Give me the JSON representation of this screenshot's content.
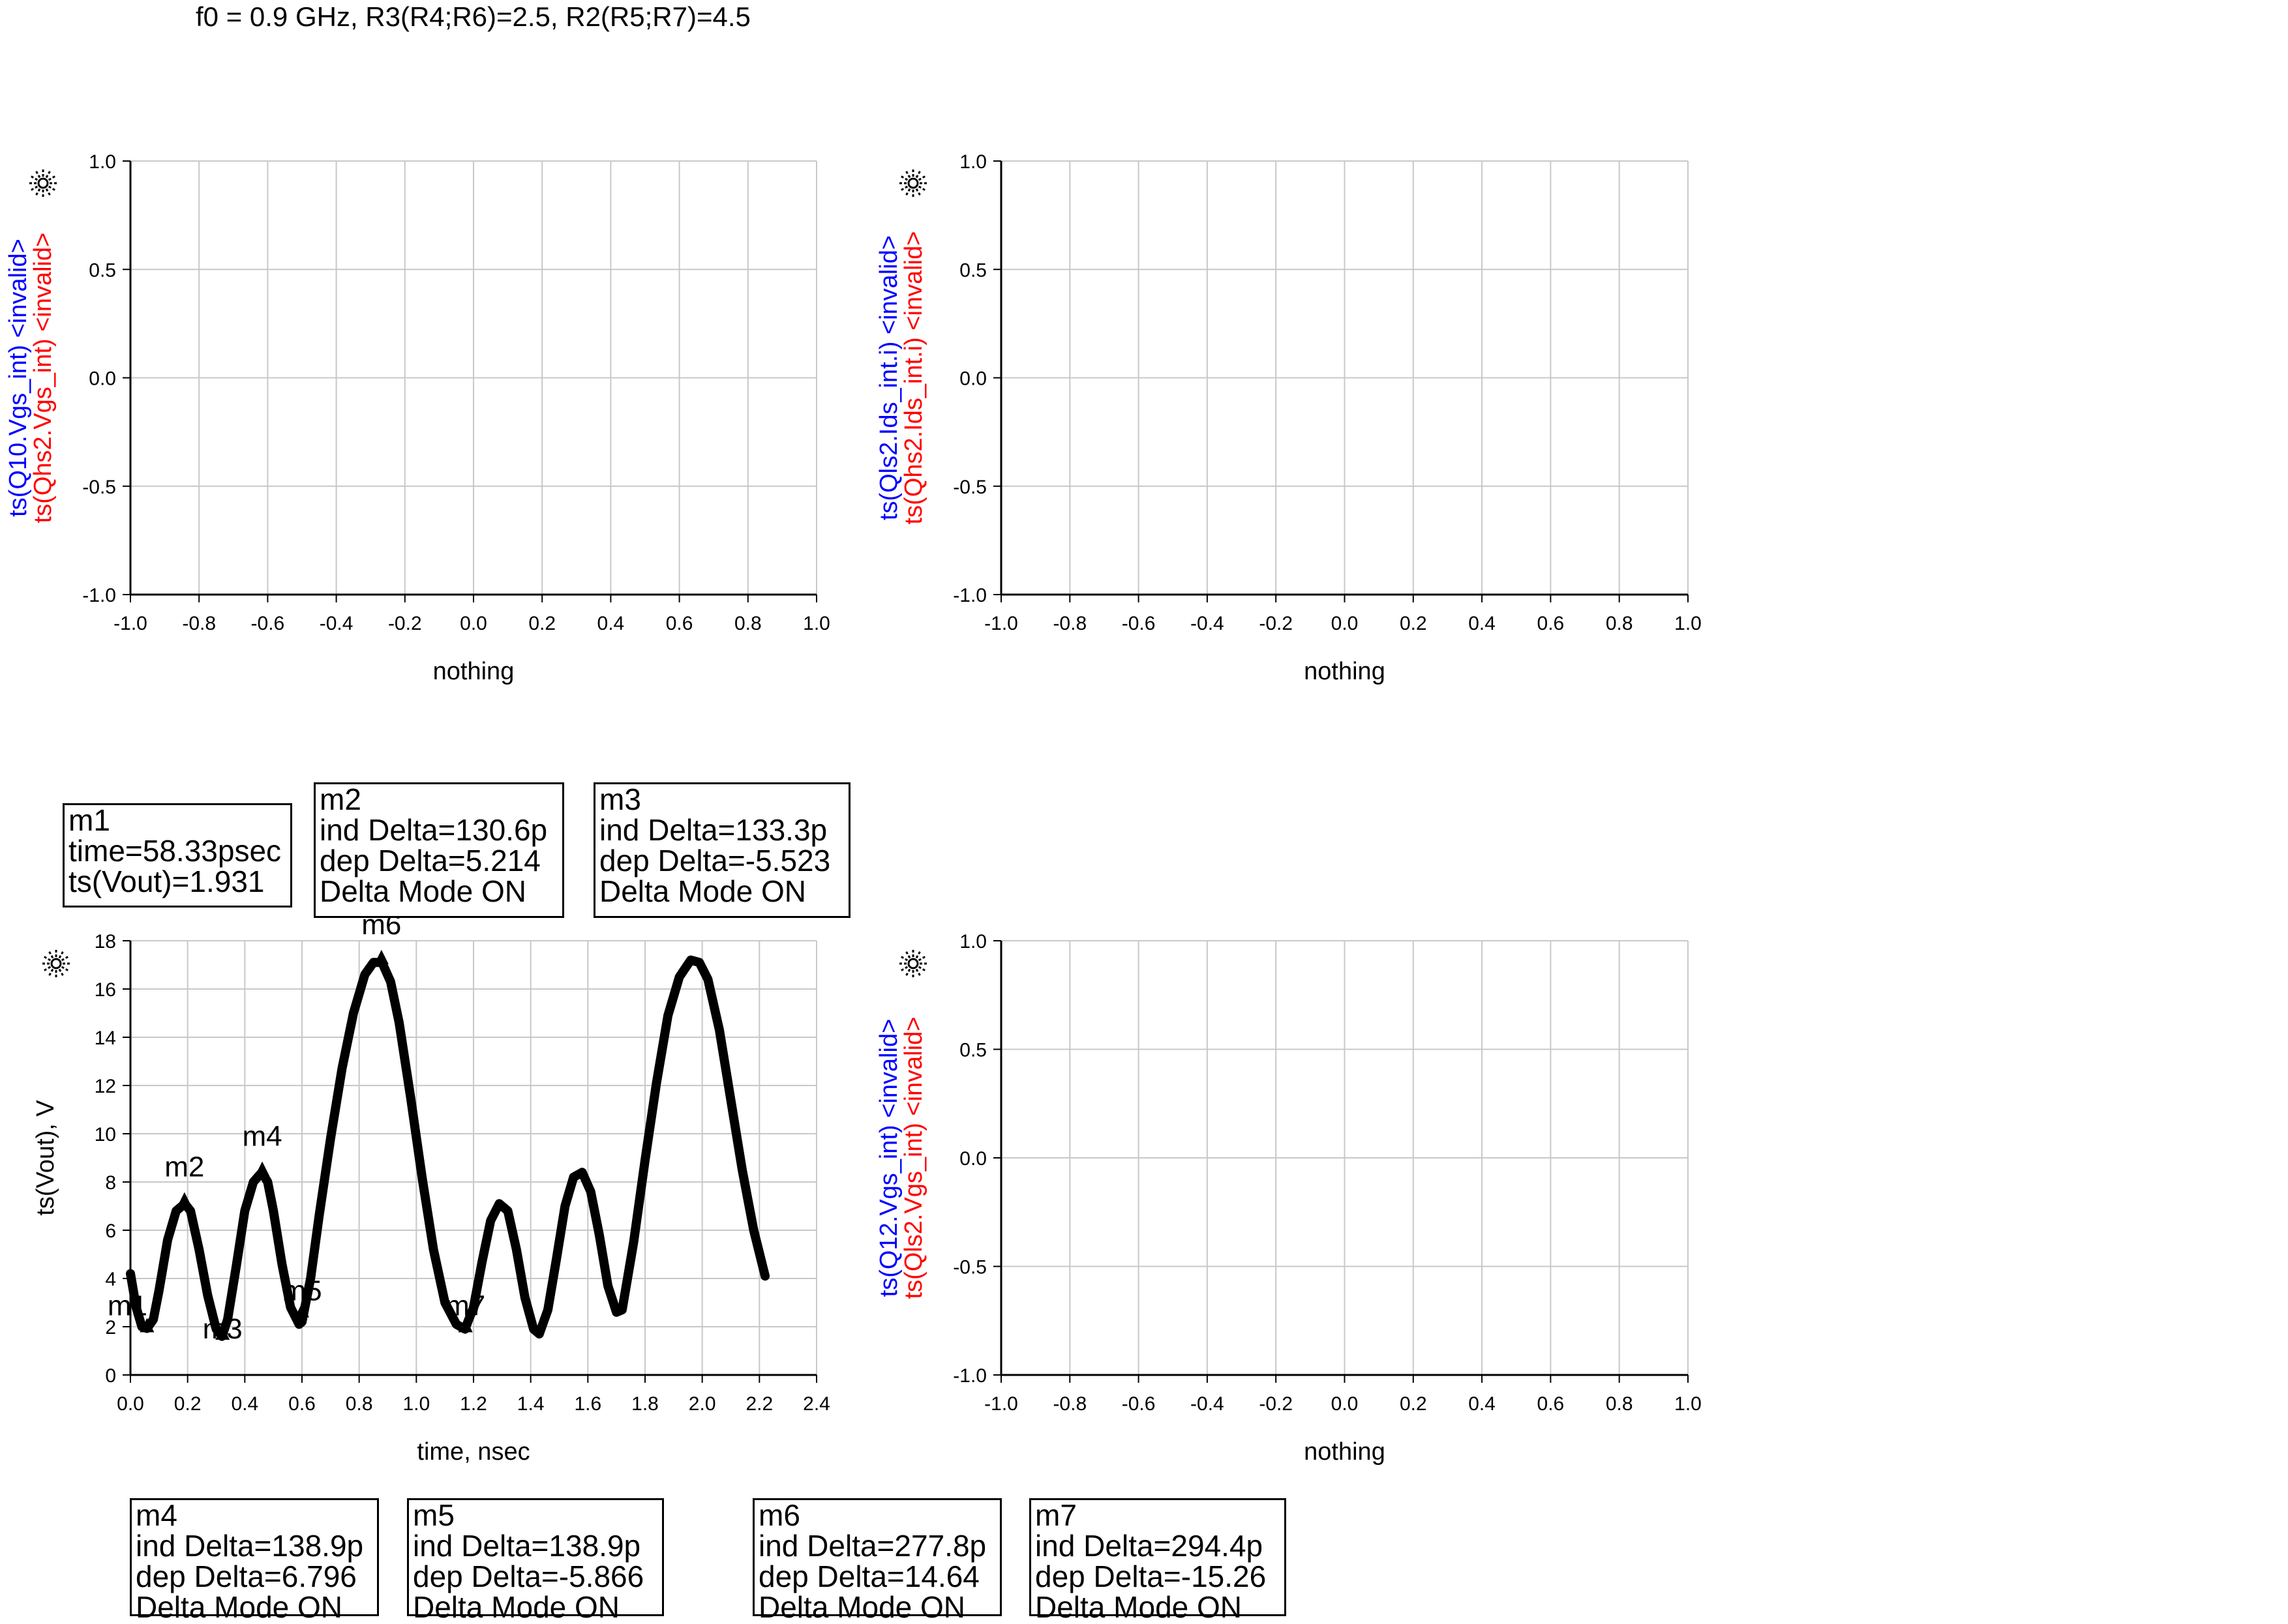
{
  "page_title": "f0 = 0.9 GHz, R3(R4;R6)=2.5, R2(R5;R7)=4.5",
  "chart_data": [
    {
      "type": "line",
      "ylabel_series": [
        {
          "text": "ts(Q10.Vgs_int)",
          "suffix": "<invalid>",
          "color": "#0000ff"
        },
        {
          "text": "ts(Qhs2.Vgs_int)",
          "suffix": "<invalid>",
          "color": "#ff0000"
        }
      ],
      "xlabel": "nothing",
      "xlim": [
        -1.0,
        1.0
      ],
      "ylim": [
        -1.0,
        1.0
      ],
      "xticks": [
        "-1.0",
        "-0.8",
        "-0.6",
        "-0.4",
        "-0.2",
        "0.0",
        "0.2",
        "0.4",
        "0.6",
        "0.8",
        "1.0"
      ],
      "yticks": [
        "1.0",
        "0.5",
        "0.0",
        "-0.5",
        "-1.0"
      ],
      "grid": true,
      "series": []
    },
    {
      "type": "line",
      "ylabel_series": [
        {
          "text": "ts(Qls2.Ids_int.i)",
          "suffix": "<invalid>",
          "color": "#0000ff"
        },
        {
          "text": "ts(Qhs2.Ids_int.i)",
          "suffix": "<invalid>",
          "color": "#ff0000"
        }
      ],
      "xlabel": "nothing",
      "xlim": [
        -1.0,
        1.0
      ],
      "ylim": [
        -1.0,
        1.0
      ],
      "xticks": [
        "-1.0",
        "-0.8",
        "-0.6",
        "-0.4",
        "-0.2",
        "0.0",
        "0.2",
        "0.4",
        "0.6",
        "0.8",
        "1.0"
      ],
      "yticks": [
        "1.0",
        "0.5",
        "0.0",
        "-0.5",
        "-1.0"
      ],
      "grid": true,
      "series": []
    },
    {
      "type": "line",
      "ylabel": "ts(Vout), V",
      "xlabel": "time, nsec",
      "xlim": [
        0.0,
        2.4
      ],
      "ylim": [
        0,
        18
      ],
      "xticks": [
        "0.0",
        "0.2",
        "0.4",
        "0.6",
        "0.8",
        "1.0",
        "1.2",
        "1.4",
        "1.6",
        "1.8",
        "2.0",
        "2.2",
        "2.4"
      ],
      "yticks": [
        "18",
        "16",
        "14",
        "12",
        "10",
        "8",
        "6",
        "4",
        "2",
        "0"
      ],
      "grid": true,
      "series": [
        {
          "color": "#000000",
          "x": [
            0.0,
            0.02,
            0.04,
            0.058,
            0.08,
            0.1,
            0.13,
            0.16,
            0.19,
            0.21,
            0.24,
            0.27,
            0.3,
            0.32,
            0.34,
            0.37,
            0.4,
            0.43,
            0.46,
            0.48,
            0.5,
            0.53,
            0.56,
            0.59,
            0.6,
            0.63,
            0.66,
            0.7,
            0.74,
            0.78,
            0.82,
            0.85,
            0.88,
            0.91,
            0.94,
            0.98,
            1.02,
            1.06,
            1.1,
            1.14,
            1.17,
            1.2,
            1.23,
            1.26,
            1.29,
            1.32,
            1.35,
            1.38,
            1.41,
            1.43,
            1.46,
            1.49,
            1.52,
            1.55,
            1.58,
            1.61,
            1.64,
            1.67,
            1.7,
            1.72,
            1.76,
            1.8,
            1.84,
            1.88,
            1.92,
            1.96,
            1.99,
            2.02,
            2.06,
            2.1,
            2.14,
            2.18,
            2.22
          ],
          "y": [
            4.2,
            2.8,
            2.0,
            1.93,
            2.3,
            3.5,
            5.6,
            6.8,
            7.1,
            6.8,
            5.2,
            3.3,
            1.9,
            1.6,
            2.3,
            4.5,
            6.8,
            8.0,
            8.4,
            8.0,
            6.8,
            4.6,
            2.8,
            2.1,
            2.2,
            4.0,
            6.6,
            9.8,
            12.7,
            15.0,
            16.6,
            17.1,
            17.1,
            16.3,
            14.6,
            11.5,
            8.2,
            5.2,
            3.0,
            2.1,
            1.9,
            2.8,
            4.7,
            6.4,
            7.1,
            6.8,
            5.2,
            3.2,
            1.9,
            1.7,
            2.7,
            4.8,
            7.0,
            8.2,
            8.4,
            7.6,
            5.8,
            3.7,
            2.6,
            2.7,
            5.5,
            8.9,
            12.1,
            14.9,
            16.5,
            17.2,
            17.1,
            16.4,
            14.3,
            11.4,
            8.5,
            6.0,
            4.1
          ]
        }
      ],
      "markers": [
        {
          "name": "m1",
          "x": 0.058,
          "y": 1.931
        },
        {
          "name": "m2",
          "x": 0.189,
          "y": 7.145
        },
        {
          "name": "m3",
          "x": 0.322,
          "y": 1.622
        },
        {
          "name": "m4",
          "x": 0.461,
          "y": 8.418
        },
        {
          "name": "m5",
          "x": 0.6,
          "y": 2.552
        },
        {
          "name": "m6",
          "x": 0.878,
          "y": 17.192
        },
        {
          "name": "m7",
          "x": 1.172,
          "y": 1.932
        }
      ]
    },
    {
      "type": "line",
      "ylabel_series": [
        {
          "text": "ts(Q12.Vgs_int)",
          "suffix": "<invalid>",
          "color": "#0000ff"
        },
        {
          "text": "ts(Qls2.Vgs_int)",
          "suffix": "<invalid>",
          "color": "#ff0000"
        }
      ],
      "xlabel": "nothing",
      "xlim": [
        -1.0,
        1.0
      ],
      "ylim": [
        -1.0,
        1.0
      ],
      "xticks": [
        "-1.0",
        "-0.8",
        "-0.6",
        "-0.4",
        "-0.2",
        "0.0",
        "0.2",
        "0.4",
        "0.6",
        "0.8",
        "1.0"
      ],
      "yticks": [
        "1.0",
        "0.5",
        "0.0",
        "-0.5",
        "-1.0"
      ],
      "grid": true,
      "series": []
    }
  ],
  "marker_boxes": [
    {
      "id": "m1",
      "lines": [
        "m1",
        "time=58.33psec",
        "ts(Vout)=1.931"
      ]
    },
    {
      "id": "m2",
      "lines": [
        "m2",
        "ind Delta=130.6p",
        "dep Delta=5.214",
        "Delta Mode ON"
      ]
    },
    {
      "id": "m3",
      "lines": [
        "m3",
        "ind Delta=133.3p",
        "dep Delta=-5.523",
        "Delta Mode ON"
      ]
    },
    {
      "id": "m4",
      "lines": [
        "m4",
        "ind Delta=138.9p",
        "dep Delta=6.796",
        "Delta Mode ON"
      ]
    },
    {
      "id": "m5",
      "lines": [
        "m5",
        "ind Delta=138.9p",
        "dep Delta=-5.866",
        "Delta Mode ON"
      ]
    },
    {
      "id": "m6",
      "lines": [
        "m6",
        "ind Delta=277.8p",
        "dep Delta=14.64",
        "Delta Mode ON"
      ]
    },
    {
      "id": "m7",
      "lines": [
        "m7",
        "ind Delta=294.4p",
        "dep Delta=-15.26",
        "Delta Mode ON"
      ]
    }
  ]
}
